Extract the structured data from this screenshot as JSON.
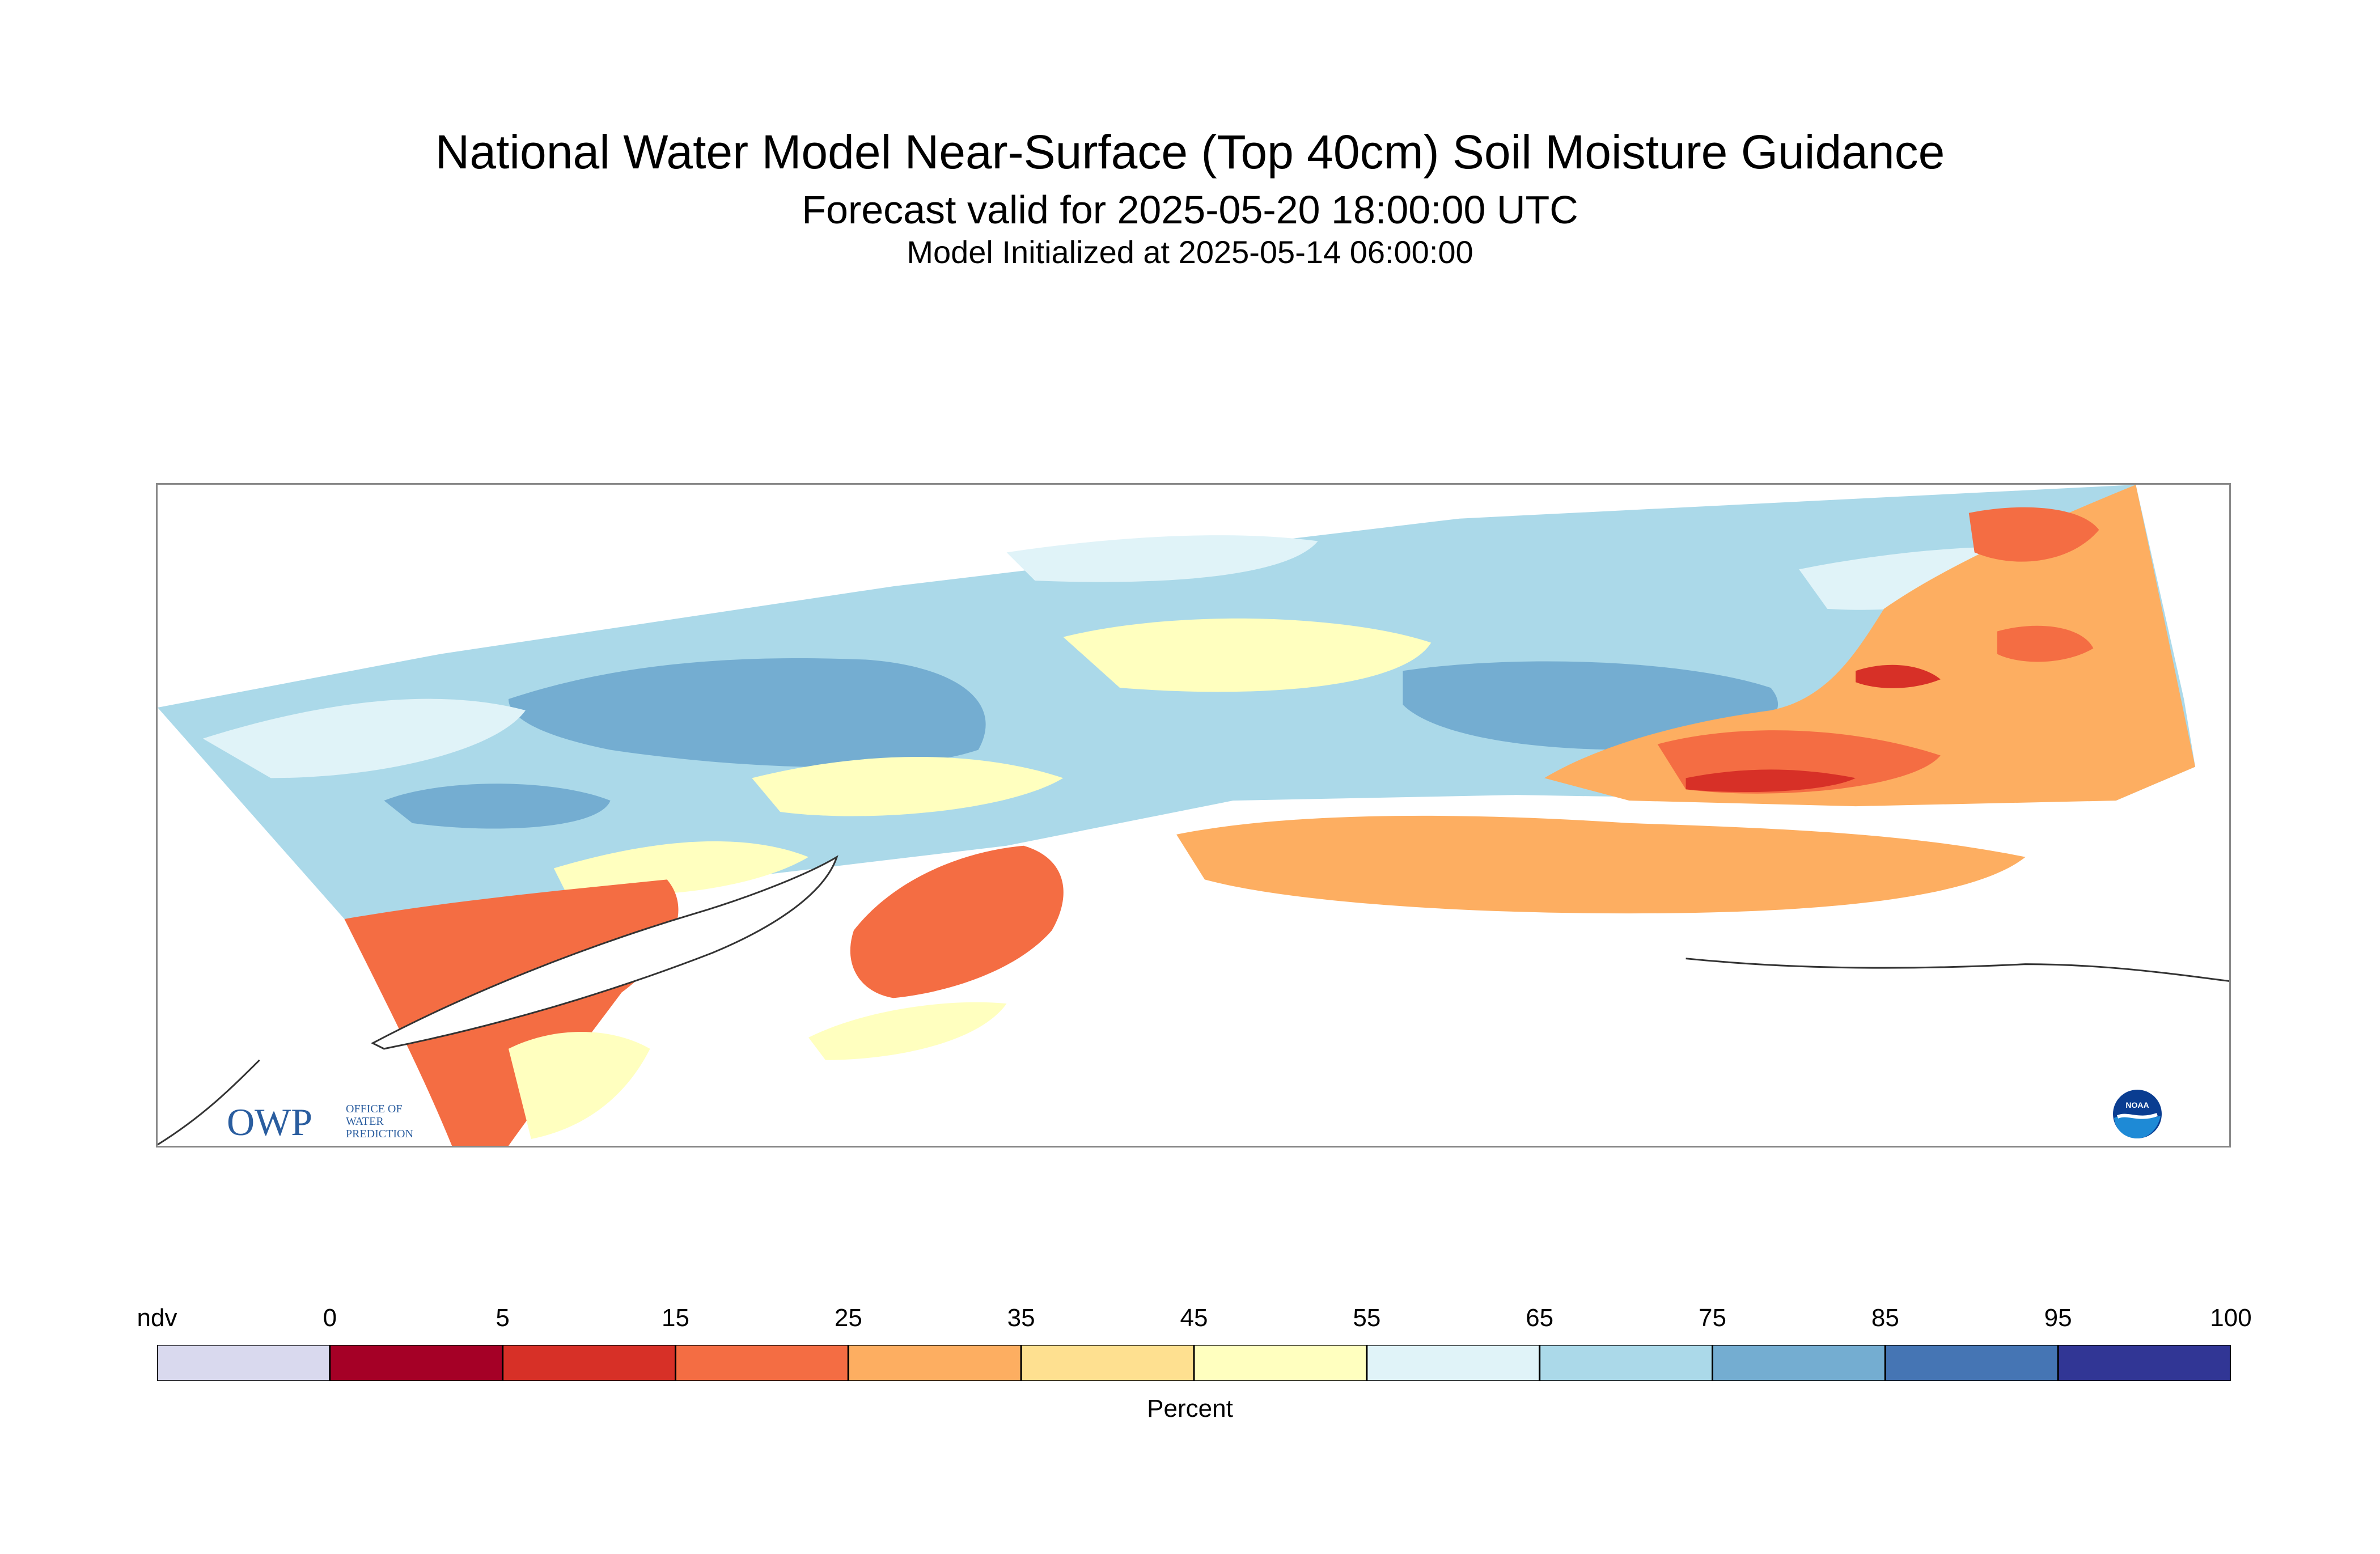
{
  "header": {
    "title": "National Water Model Near-Surface (Top 40cm) Soil Moisture Guidance",
    "subtitle": "Forecast valid for 2025-05-20 18:00:00 UTC",
    "init": "Model Initialized at 2025-05-14 06:00:00"
  },
  "logos": {
    "owp": {
      "letters": "OWP",
      "text": [
        "OFFICE OF",
        "WATER",
        "PREDICTION"
      ]
    },
    "noaa": {
      "text": "NOAA"
    }
  },
  "legend": {
    "units": "Percent",
    "labels": [
      "ndv",
      "0",
      "5",
      "15",
      "25",
      "35",
      "45",
      "55",
      "65",
      "75",
      "85",
      "95",
      "100"
    ],
    "colors": [
      "#d9d9ee",
      "#a50026",
      "#d73027",
      "#f46d43",
      "#fdae61",
      "#fee090",
      "#ffffbf",
      "#e0f3f8",
      "#abd9e9",
      "#74add1",
      "#4575b4",
      "#313695"
    ]
  }
}
